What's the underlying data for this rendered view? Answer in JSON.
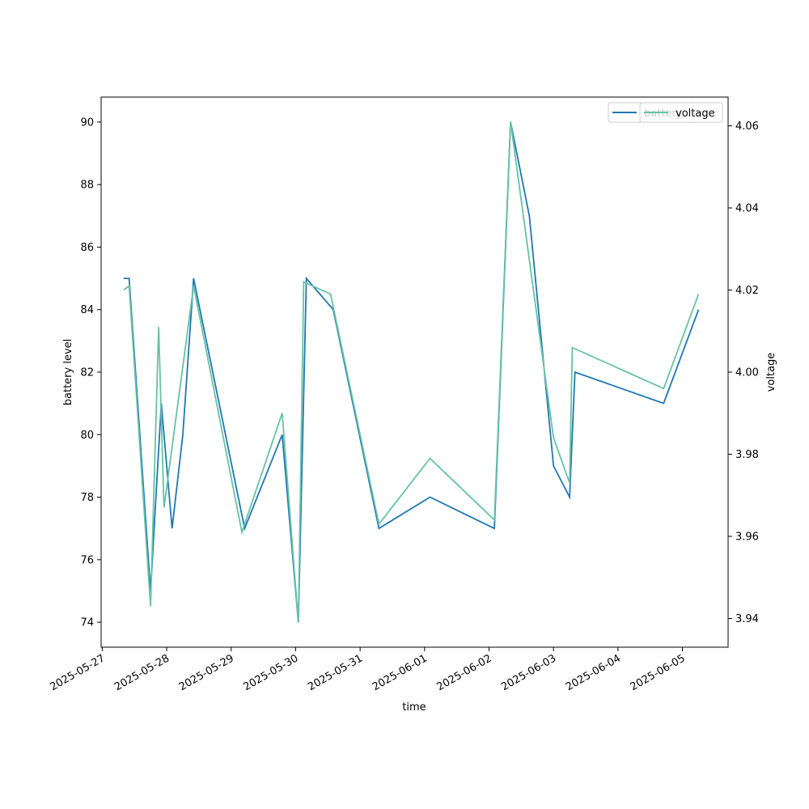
{
  "chart_data": {
    "type": "line",
    "xlabel": "time",
    "ylabel_left": "battery level",
    "ylabel_right": "voltage",
    "x_tick_labels": [
      "2025-05-27",
      "2025-05-28",
      "2025-05-29",
      "2025-05-30",
      "2025-05-31",
      "2025-06-01",
      "2025-06-02",
      "2025-06-03",
      "2025-06-04",
      "2025-06-05"
    ],
    "xlim": [
      "2025-05-26T23:35",
      "2025-06-05T17:00"
    ],
    "y_left_ticks": [
      "74",
      "76",
      "78",
      "80",
      "82",
      "84",
      "86",
      "88",
      "90"
    ],
    "ylim_left": [
      73.2,
      90.8
    ],
    "y_right_ticks": [
      "3.94",
      "3.96",
      "3.98",
      "4.00",
      "4.02",
      "4.04",
      "4.06"
    ],
    "ylim_right": [
      3.933,
      4.067
    ],
    "grid": false,
    "series": [
      {
        "name": "battery",
        "axis": "left",
        "color": "#1f77b4",
        "x": [
          "2025-05-27T08:00",
          "2025-05-27T10:00",
          "2025-05-27T18:00",
          "2025-05-27T22:00",
          "2025-05-28T02:00",
          "2025-05-28T06:00",
          "2025-05-28T10:00",
          "2025-05-29T05:00",
          "2025-05-29T19:00",
          "2025-05-30T01:00",
          "2025-05-30T04:00",
          "2025-05-30T14:00",
          "2025-05-31T07:00",
          "2025-06-01T02:00",
          "2025-06-02T02:00",
          "2025-06-02T08:00",
          "2025-06-02T15:00",
          "2025-06-03T00:00",
          "2025-06-03T06:00",
          "2025-06-03T08:00",
          "2025-06-04T17:00",
          "2025-06-05T06:00"
        ],
        "values": [
          85,
          85,
          75,
          81,
          77,
          80,
          85,
          77,
          80,
          74,
          85,
          84,
          77,
          78,
          77,
          90,
          87,
          79,
          78,
          82,
          81,
          84
        ]
      },
      {
        "name": "voltage",
        "axis": "right",
        "color": "#66c2a5",
        "x": [
          "2025-05-27T08:00",
          "2025-05-27T10:00",
          "2025-05-27T18:00",
          "2025-05-27T21:00",
          "2025-05-27T23:00",
          "2025-05-28T10:00",
          "2025-05-29T04:00",
          "2025-05-29T19:00",
          "2025-05-30T01:00",
          "2025-05-30T03:00",
          "2025-05-30T13:00",
          "2025-05-31T07:00",
          "2025-06-01T02:00",
          "2025-06-02T02:00",
          "2025-06-02T08:00",
          "2025-06-03T00:00",
          "2025-06-03T06:00",
          "2025-06-03T07:00",
          "2025-06-04T17:00",
          "2025-06-05T06:00"
        ],
        "values": [
          4.02,
          4.021,
          3.943,
          4.011,
          3.967,
          4.021,
          3.961,
          3.99,
          3.939,
          4.022,
          4.019,
          3.963,
          3.979,
          3.964,
          4.061,
          3.984,
          3.973,
          4.006,
          3.996,
          4.019
        ]
      }
    ],
    "legend_position": "upper right"
  }
}
